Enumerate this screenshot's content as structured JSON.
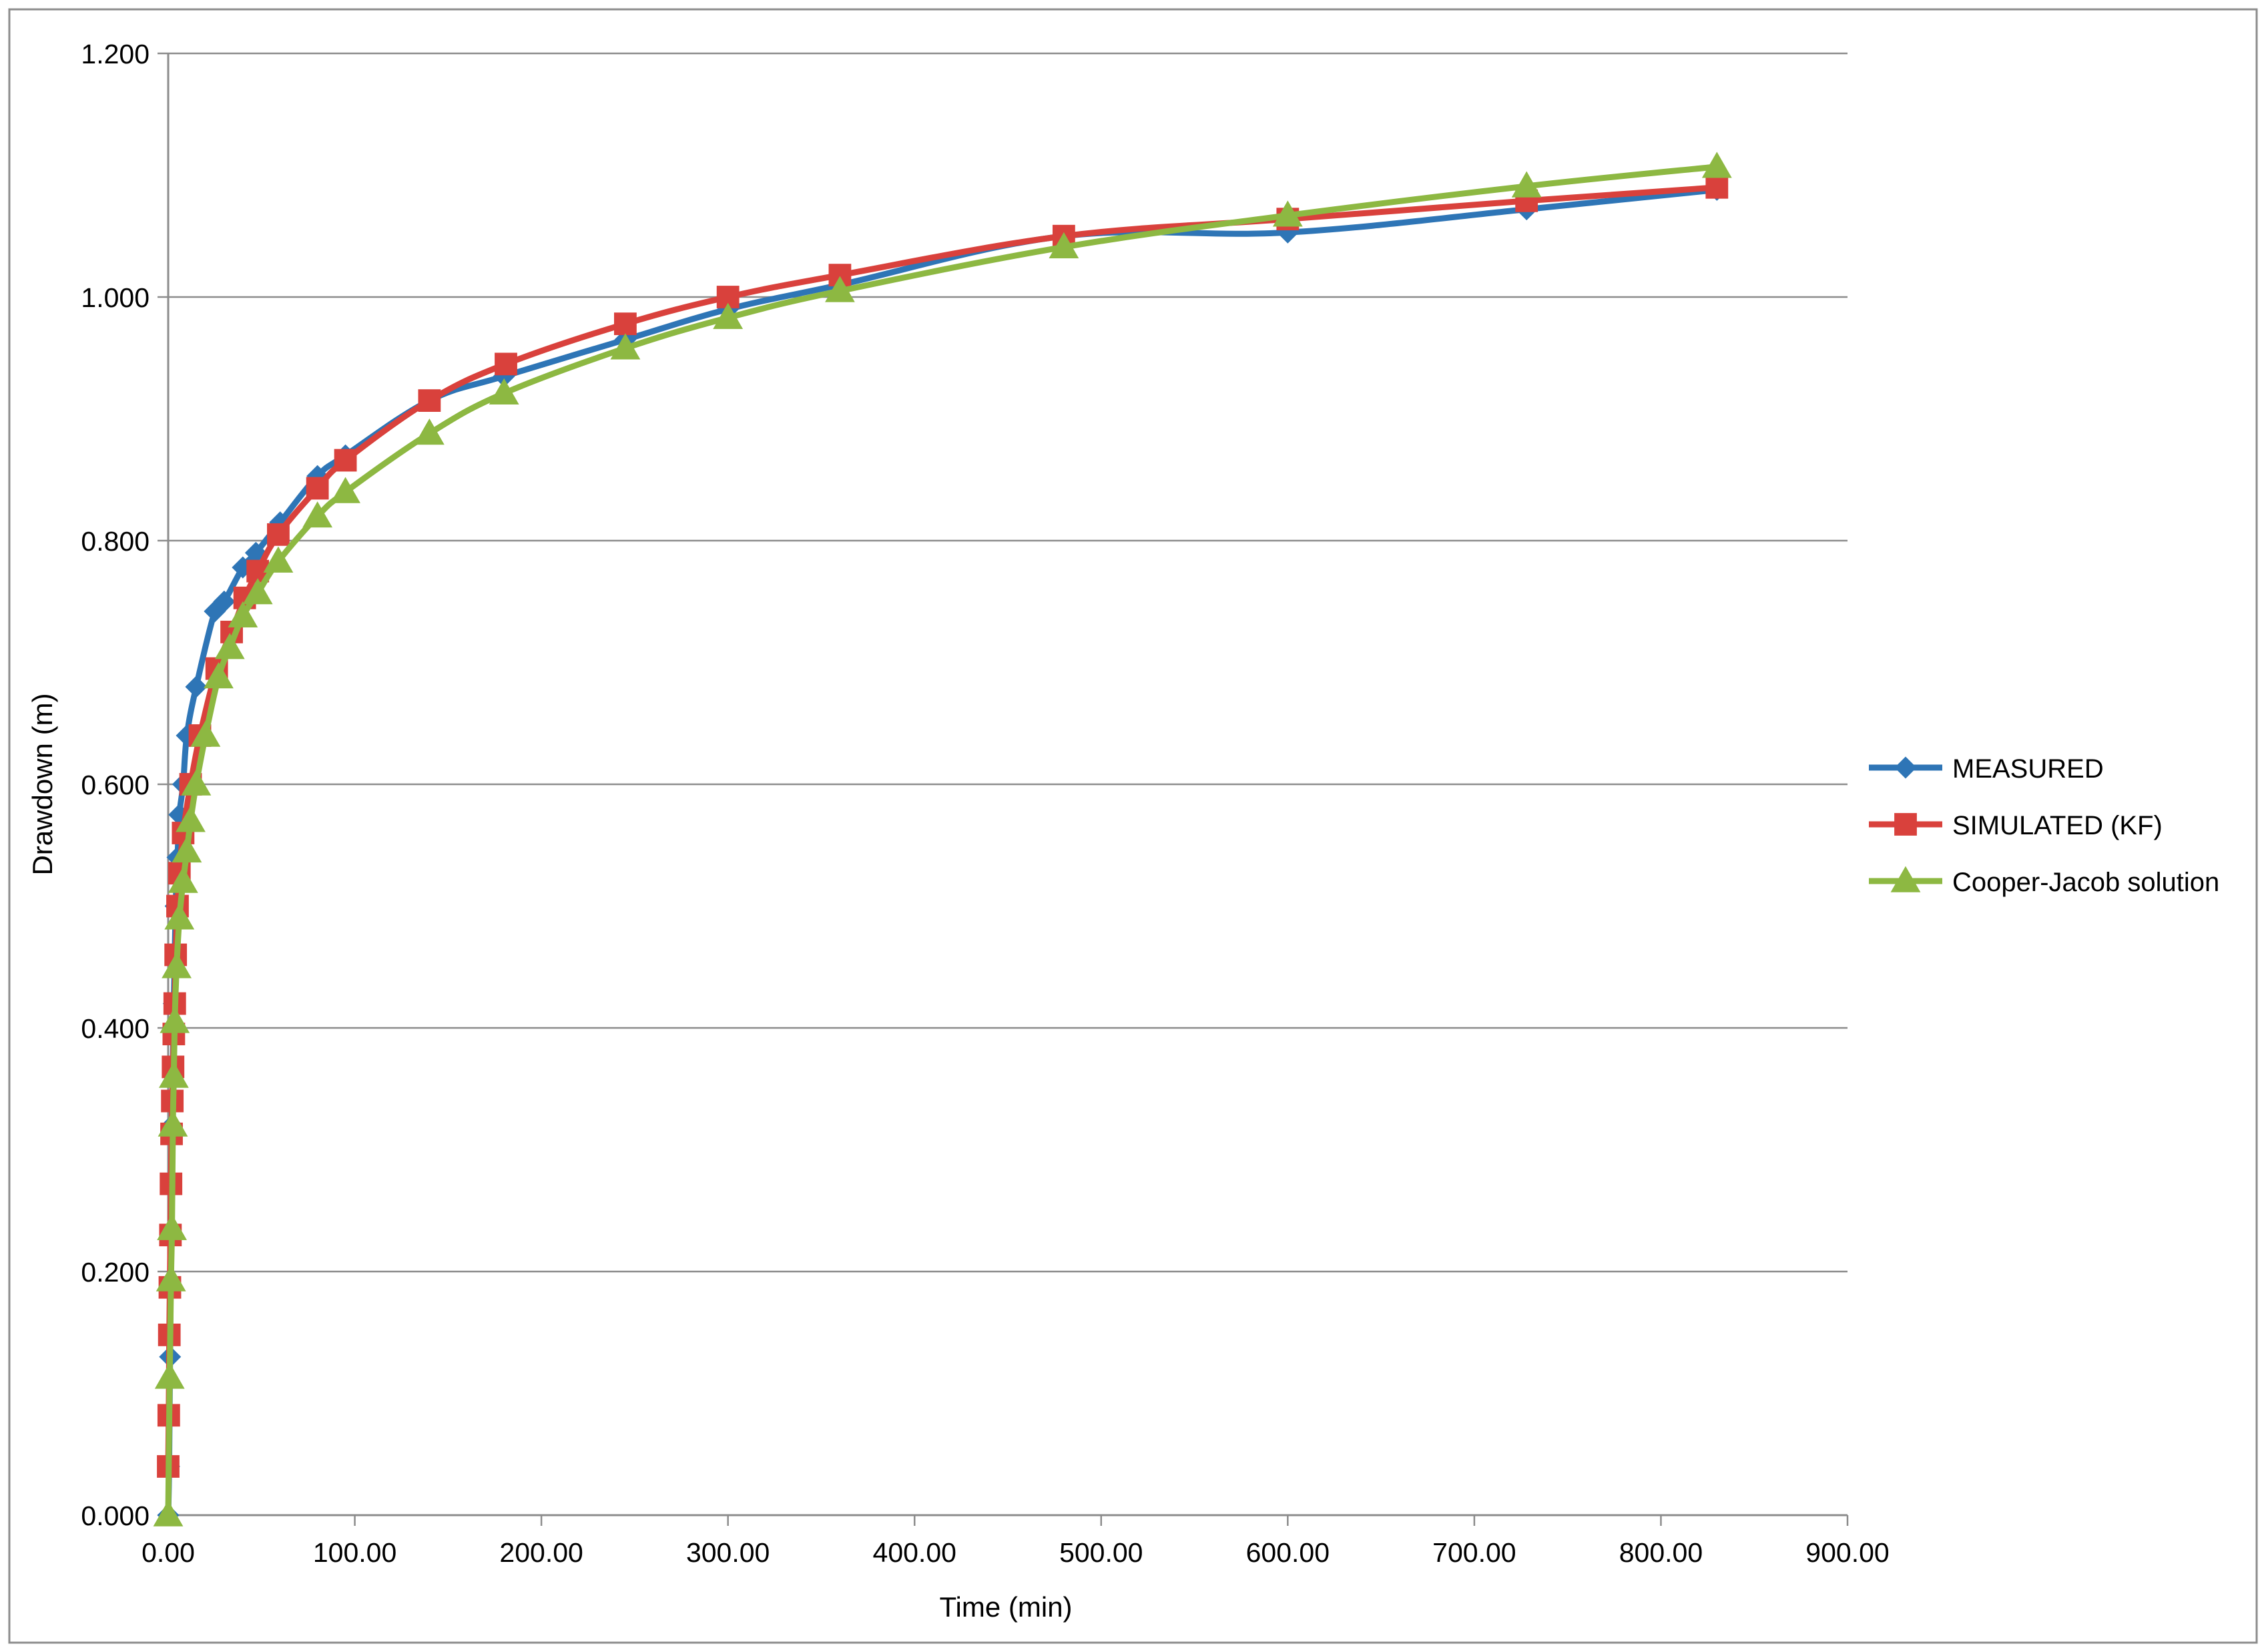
{
  "chart_data": {
    "type": "line",
    "xlabel": "Time (min)",
    "ylabel": "Drawdown (m)",
    "xlim": [
      0,
      900
    ],
    "ylim": [
      0,
      1.2
    ],
    "x_ticks": [
      0,
      100,
      200,
      300,
      400,
      500,
      600,
      700,
      800,
      900
    ],
    "y_ticks": [
      0,
      0.2,
      0.4,
      0.6,
      0.8,
      1.0,
      1.2
    ],
    "x_tick_labels": [
      "0.00",
      "100.00",
      "200.00",
      "300.00",
      "400.00",
      "500.00",
      "600.00",
      "700.00",
      "800.00",
      "900.00"
    ],
    "y_tick_labels": [
      "0.000",
      "0.200",
      "0.400",
      "0.600",
      "0.800",
      "1.000",
      "1.200"
    ],
    "grid": "horizontal",
    "legend_position": "right",
    "series": [
      {
        "name": "MEASURED",
        "color": "#2e75b6",
        "marker": "diamond",
        "points": [
          [
            0,
            0
          ],
          [
            0.5,
            0.04
          ],
          [
            1,
            0.13
          ],
          [
            1.5,
            0.23
          ],
          [
            2,
            0.32
          ],
          [
            3,
            0.42
          ],
          [
            4,
            0.5
          ],
          [
            5,
            0.54
          ],
          [
            6,
            0.575
          ],
          [
            8,
            0.6
          ],
          [
            10,
            0.64
          ],
          [
            15,
            0.68
          ],
          [
            25,
            0.742
          ],
          [
            30,
            0.75
          ],
          [
            40,
            0.778
          ],
          [
            47,
            0.79
          ],
          [
            60,
            0.815
          ],
          [
            80,
            0.853
          ],
          [
            95,
            0.87
          ],
          [
            140,
            0.915
          ],
          [
            180,
            0.935
          ],
          [
            245,
            0.965
          ],
          [
            300,
            0.99
          ],
          [
            360,
            1.01
          ],
          [
            480,
            1.05
          ],
          [
            600,
            1.053
          ],
          [
            728,
            1.072
          ],
          [
            830,
            1.088
          ]
        ]
      },
      {
        "name": "SIMULATED (KF)",
        "color": "#d9413c",
        "marker": "square",
        "points": [
          [
            0,
            0.04
          ],
          [
            0.3,
            0.082
          ],
          [
            0.6,
            0.148
          ],
          [
            0.9,
            0.187
          ],
          [
            1.2,
            0.23
          ],
          [
            1.5,
            0.272
          ],
          [
            1.8,
            0.313
          ],
          [
            2.2,
            0.34
          ],
          [
            2.6,
            0.368
          ],
          [
            3,
            0.395
          ],
          [
            3.5,
            0.42
          ],
          [
            4,
            0.46
          ],
          [
            5,
            0.5
          ],
          [
            6,
            0.527
          ],
          [
            8,
            0.56
          ],
          [
            12,
            0.6
          ],
          [
            17,
            0.64
          ],
          [
            26,
            0.695
          ],
          [
            34,
            0.725
          ],
          [
            41,
            0.753
          ],
          [
            48,
            0.775
          ],
          [
            59,
            0.805
          ],
          [
            80,
            0.843
          ],
          [
            95,
            0.866
          ],
          [
            140,
            0.915
          ],
          [
            181,
            0.945
          ],
          [
            245,
            0.978
          ],
          [
            300,
            1.0
          ],
          [
            360,
            1.018
          ],
          [
            480,
            1.05
          ],
          [
            600,
            1.064
          ],
          [
            728,
            1.079
          ],
          [
            830,
            1.09
          ]
        ]
      },
      {
        "name": "Cooper-Jacob solution",
        "color": "#8db842",
        "marker": "triangle",
        "points": [
          [
            0,
            0
          ],
          [
            0.8,
            0.113
          ],
          [
            1.5,
            0.193
          ],
          [
            2,
            0.235
          ],
          [
            2.5,
            0.32
          ],
          [
            3,
            0.36
          ],
          [
            3.5,
            0.405
          ],
          [
            4.5,
            0.45
          ],
          [
            6,
            0.49
          ],
          [
            8,
            0.52
          ],
          [
            10,
            0.545
          ],
          [
            12,
            0.57
          ],
          [
            15,
            0.6
          ],
          [
            20,
            0.64
          ],
          [
            27,
            0.688
          ],
          [
            33,
            0.712
          ],
          [
            40,
            0.738
          ],
          [
            48,
            0.757
          ],
          [
            59,
            0.783
          ],
          [
            80,
            0.82
          ],
          [
            95,
            0.84
          ],
          [
            140,
            0.888
          ],
          [
            180,
            0.921
          ],
          [
            245,
            0.958
          ],
          [
            300,
            0.983
          ],
          [
            360,
            1.005
          ],
          [
            480,
            1.041
          ],
          [
            600,
            1.067
          ],
          [
            728,
            1.091
          ],
          [
            830,
            1.107
          ]
        ]
      }
    ]
  }
}
